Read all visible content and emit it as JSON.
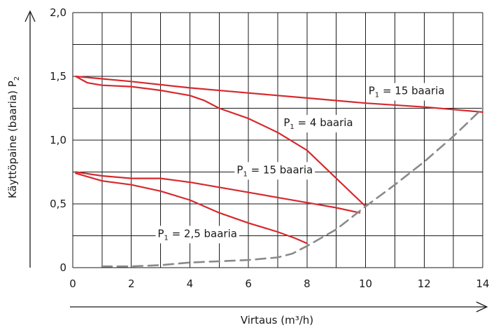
{
  "chart_data": {
    "type": "line",
    "title": "",
    "xlabel": "Virtaus (m³/h)",
    "ylabel": "Käyttöpaine (baaria) P",
    "ylabel_subscript": "2",
    "xlim": [
      0,
      14
    ],
    "ylim": [
      0,
      2.0
    ],
    "x_ticks": [
      "0",
      "2",
      "4",
      "6",
      "8",
      "10",
      "12",
      "14"
    ],
    "y_ticks": [
      "0",
      "0,5",
      "1,0",
      "1,5",
      "2,0"
    ],
    "grid": true,
    "colors": {
      "series": "#d62a2e",
      "dashed": "#8a8a8a",
      "grid": "#1a1a1a"
    },
    "series": [
      {
        "style": "solid",
        "points": [
          [
            0.1,
            1.5
          ],
          [
            2,
            1.46
          ],
          [
            4,
            1.41
          ],
          [
            6,
            1.37
          ],
          [
            8,
            1.33
          ],
          [
            10,
            1.29
          ],
          [
            12,
            1.26
          ],
          [
            14,
            1.22
          ]
        ]
      },
      {
        "style": "solid",
        "points": [
          [
            0.1,
            1.5
          ],
          [
            0.5,
            1.45
          ],
          [
            1,
            1.43
          ],
          [
            2,
            1.42
          ],
          [
            3,
            1.39
          ],
          [
            4,
            1.35
          ],
          [
            4.5,
            1.31
          ],
          [
            5,
            1.25
          ],
          [
            6,
            1.17
          ],
          [
            7,
            1.06
          ],
          [
            8,
            0.92
          ],
          [
            9,
            0.7
          ],
          [
            10,
            0.48
          ]
        ]
      },
      {
        "style": "solid",
        "points": [
          [
            0.1,
            0.75
          ],
          [
            1,
            0.72
          ],
          [
            2,
            0.7
          ],
          [
            3,
            0.7
          ],
          [
            4,
            0.67
          ],
          [
            5,
            0.63
          ],
          [
            6,
            0.59
          ],
          [
            7,
            0.55
          ],
          [
            8,
            0.51
          ],
          [
            9,
            0.47
          ],
          [
            9.8,
            0.43
          ]
        ]
      },
      {
        "style": "solid",
        "points": [
          [
            0.1,
            0.74
          ],
          [
            1,
            0.68
          ],
          [
            2,
            0.65
          ],
          [
            3,
            0.6
          ],
          [
            4,
            0.53
          ],
          [
            5,
            0.43
          ],
          [
            6,
            0.35
          ],
          [
            7,
            0.28
          ],
          [
            7.6,
            0.23
          ],
          [
            8,
            0.19
          ]
        ]
      },
      {
        "style": "dashed",
        "points": [
          [
            1,
            0.01
          ],
          [
            2,
            0.01
          ],
          [
            3,
            0.02
          ],
          [
            4,
            0.04
          ],
          [
            5,
            0.05
          ],
          [
            6,
            0.06
          ],
          [
            7,
            0.08
          ],
          [
            7.5,
            0.11
          ],
          [
            8,
            0.17
          ],
          [
            9,
            0.3
          ],
          [
            10,
            0.48
          ],
          [
            11,
            0.65
          ],
          [
            12,
            0.83
          ],
          [
            13,
            1.03
          ],
          [
            14,
            1.25
          ]
        ]
      }
    ],
    "series_labels": [
      {
        "main": "P",
        "sub": "1",
        "rest": " = 15 baaria",
        "x": 10.1,
        "y": 1.36
      },
      {
        "main": "P",
        "sub": "1",
        "rest": " = 4 baaria",
        "x": 7.2,
        "y": 1.11
      },
      {
        "main": "P",
        "sub": "1",
        "rest": " = 15 baaria",
        "x": 5.6,
        "y": 0.74
      },
      {
        "main": "P",
        "sub": "1",
        "rest": " = 2,5 baaria",
        "x": 2.9,
        "y": 0.24
      }
    ]
  }
}
